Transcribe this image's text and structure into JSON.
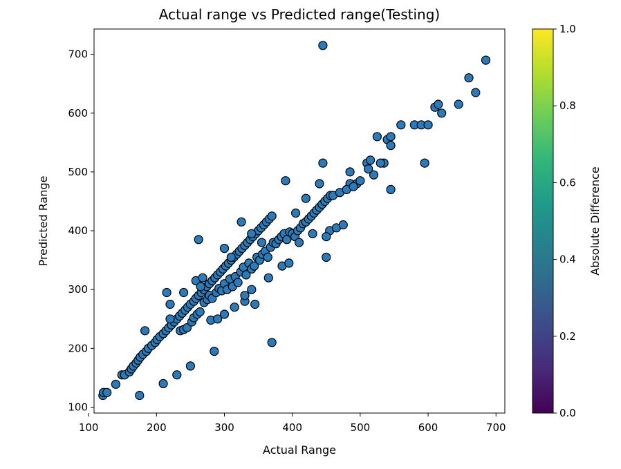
{
  "chart_data": {
    "type": "scatter",
    "title": "Actual range vs Predicted range(Testing)",
    "xlabel": "Actual Range",
    "ylabel": "Predicted Range",
    "xlim": [
      108,
      713
    ],
    "ylim": [
      90,
      743
    ],
    "xticks": [
      "100",
      "200",
      "300",
      "400",
      "500",
      "600",
      "700"
    ],
    "xtick_values": [
      100,
      200,
      300,
      400,
      500,
      600,
      700
    ],
    "yticks": [
      "100",
      "200",
      "300",
      "400",
      "500",
      "600",
      "700"
    ],
    "ytick_values": [
      100,
      200,
      300,
      400,
      500,
      600,
      700
    ],
    "grid": false,
    "marker_color": "#2b7bba",
    "marker_edge_color": "#000000",
    "colorbar": {
      "label": "Absolute Difference",
      "colormap": "viridis",
      "range": [
        0.0,
        1.0
      ],
      "ticks": [
        "0.0",
        "0.2",
        "0.4",
        "0.6",
        "0.8",
        "1.0"
      ],
      "tick_values": [
        0.0,
        0.2,
        0.4,
        0.6,
        0.8,
        1.0
      ],
      "colors": [
        "#440154",
        "#482878",
        "#3e4989",
        "#31688e",
        "#26828e",
        "#1f9e89",
        "#35b779",
        "#6ece58",
        "#b5de2b",
        "#fde725"
      ]
    },
    "points": [
      [
        121,
        120
      ],
      [
        122,
        125
      ],
      [
        127,
        125
      ],
      [
        140,
        139
      ],
      [
        149,
        155
      ],
      [
        153,
        155
      ],
      [
        160,
        160
      ],
      [
        163,
        165
      ],
      [
        166,
        170
      ],
      [
        170,
        175
      ],
      [
        173,
        180
      ],
      [
        176,
        185
      ],
      [
        180,
        190
      ],
      [
        185,
        195
      ],
      [
        188,
        200
      ],
      [
        193,
        205
      ],
      [
        198,
        210
      ],
      [
        201,
        215
      ],
      [
        205,
        220
      ],
      [
        210,
        225
      ],
      [
        214,
        230
      ],
      [
        218,
        235
      ],
      [
        222,
        240
      ],
      [
        226,
        245
      ],
      [
        230,
        250
      ],
      [
        234,
        255
      ],
      [
        238,
        260
      ],
      [
        242,
        265
      ],
      [
        246,
        270
      ],
      [
        250,
        275
      ],
      [
        255,
        280
      ],
      [
        258,
        285
      ],
      [
        262,
        290
      ],
      [
        266,
        295
      ],
      [
        270,
        300
      ],
      [
        274,
        305
      ],
      [
        278,
        310
      ],
      [
        282,
        315
      ],
      [
        286,
        320
      ],
      [
        290,
        325
      ],
      [
        294,
        330
      ],
      [
        298,
        335
      ],
      [
        302,
        340
      ],
      [
        306,
        345
      ],
      [
        310,
        350
      ],
      [
        314,
        355
      ],
      [
        318,
        360
      ],
      [
        322,
        365
      ],
      [
        326,
        370
      ],
      [
        330,
        375
      ],
      [
        334,
        380
      ],
      [
        338,
        385
      ],
      [
        342,
        390
      ],
      [
        346,
        395
      ],
      [
        350,
        400
      ],
      [
        354,
        405
      ],
      [
        358,
        410
      ],
      [
        362,
        415
      ],
      [
        366,
        420
      ],
      [
        370,
        425
      ],
      [
        175,
        120
      ],
      [
        210,
        140
      ],
      [
        230,
        155
      ],
      [
        250,
        170
      ],
      [
        285,
        195
      ],
      [
        370,
        210
      ],
      [
        183,
        230
      ],
      [
        215,
        295
      ],
      [
        220,
        275
      ],
      [
        220,
        250
      ],
      [
        240,
        295
      ],
      [
        258,
        315
      ],
      [
        262,
        385
      ],
      [
        265,
        305
      ],
      [
        268,
        320
      ],
      [
        300,
        370
      ],
      [
        310,
        355
      ],
      [
        325,
        415
      ],
      [
        340,
        395
      ],
      [
        355,
        380
      ],
      [
        390,
        485
      ],
      [
        405,
        430
      ],
      [
        420,
        455
      ],
      [
        440,
        480
      ],
      [
        445,
        515
      ],
      [
        445,
        715
      ],
      [
        450,
        355
      ],
      [
        455,
        400
      ],
      [
        465,
        405
      ],
      [
        475,
        410
      ],
      [
        485,
        480
      ],
      [
        485,
        500
      ],
      [
        495,
        480
      ],
      [
        510,
        515
      ],
      [
        515,
        520
      ],
      [
        520,
        495
      ],
      [
        525,
        560
      ],
      [
        535,
        515
      ],
      [
        540,
        555
      ],
      [
        545,
        560
      ],
      [
        545,
        545
      ],
      [
        545,
        470
      ],
      [
        560,
        580
      ],
      [
        580,
        580
      ],
      [
        590,
        580
      ],
      [
        595,
        515
      ],
      [
        600,
        580
      ],
      [
        610,
        610
      ],
      [
        615,
        615
      ],
      [
        620,
        600
      ],
      [
        645,
        615
      ],
      [
        660,
        660
      ],
      [
        670,
        635
      ],
      [
        685,
        690
      ],
      [
        235,
        230
      ],
      [
        240,
        232
      ],
      [
        245,
        235
      ],
      [
        252,
        245
      ],
      [
        255,
        252
      ],
      [
        260,
        258
      ],
      [
        264,
        262
      ],
      [
        270,
        278
      ],
      [
        275,
        283
      ],
      [
        278,
        290
      ],
      [
        282,
        285
      ],
      [
        288,
        295
      ],
      [
        292,
        302
      ],
      [
        296,
        298
      ],
      [
        300,
        310
      ],
      [
        304,
        300
      ],
      [
        308,
        318
      ],
      [
        312,
        305
      ],
      [
        316,
        322
      ],
      [
        320,
        312
      ],
      [
        324,
        330
      ],
      [
        328,
        338
      ],
      [
        332,
        325
      ],
      [
        336,
        345
      ],
      [
        340,
        335
      ],
      [
        344,
        340
      ],
      [
        348,
        355
      ],
      [
        352,
        350
      ],
      [
        356,
        360
      ],
      [
        360,
        365
      ],
      [
        364,
        355
      ],
      [
        368,
        372
      ],
      [
        372,
        380
      ],
      [
        376,
        378
      ],
      [
        380,
        385
      ],
      [
        384,
        390
      ],
      [
        388,
        395
      ],
      [
        392,
        385
      ],
      [
        396,
        398
      ],
      [
        400,
        395
      ],
      [
        404,
        390
      ],
      [
        408,
        400
      ],
      [
        412,
        405
      ],
      [
        416,
        412
      ],
      [
        420,
        415
      ],
      [
        424,
        420
      ],
      [
        428,
        425
      ],
      [
        432,
        430
      ],
      [
        436,
        435
      ],
      [
        440,
        440
      ],
      [
        444,
        445
      ],
      [
        448,
        450
      ],
      [
        452,
        455
      ],
      [
        456,
        460
      ],
      [
        460,
        460
      ],
      [
        470,
        465
      ],
      [
        480,
        470
      ],
      [
        490,
        475
      ],
      [
        500,
        485
      ],
      [
        512,
        505
      ],
      [
        530,
        515
      ],
      [
        330,
        280
      ],
      [
        345,
        275
      ],
      [
        365,
        320
      ],
      [
        385,
        340
      ],
      [
        395,
        345
      ],
      [
        410,
        380
      ],
      [
        430,
        395
      ],
      [
        450,
        390
      ],
      [
        280,
        248
      ],
      [
        290,
        250
      ],
      [
        300,
        258
      ],
      [
        315,
        270
      ],
      [
        330,
        290
      ],
      [
        340,
        300
      ]
    ]
  }
}
